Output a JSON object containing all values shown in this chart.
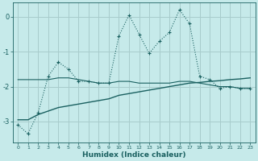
{
  "xlabel": "Humidex (Indice chaleur)",
  "background_color": "#c6eaea",
  "grid_color": "#a8cccc",
  "line_color": "#1a6060",
  "xlim": [
    -0.5,
    23.5
  ],
  "ylim": [
    -3.6,
    0.4
  ],
  "yticks": [
    0,
    -1,
    -2,
    -3
  ],
  "xticks": [
    0,
    1,
    2,
    3,
    4,
    5,
    6,
    7,
    8,
    9,
    10,
    11,
    12,
    13,
    14,
    15,
    16,
    17,
    18,
    19,
    20,
    21,
    22,
    23
  ],
  "series1_x": [
    0,
    1,
    2,
    3,
    4,
    5,
    6,
    7,
    8,
    9,
    10,
    11,
    12,
    13,
    14,
    15,
    16,
    17,
    18,
    19,
    20,
    21,
    22,
    23
  ],
  "series1_y": [
    -3.1,
    -3.35,
    -2.75,
    -1.7,
    -1.3,
    -1.5,
    -1.85,
    -1.85,
    -1.9,
    -1.9,
    -0.55,
    0.05,
    -0.5,
    -1.05,
    -0.7,
    -0.45,
    0.2,
    -0.2,
    -1.7,
    -1.8,
    -2.05,
    -2.0,
    -2.05,
    -2.05
  ],
  "series2_x": [
    0,
    1,
    2,
    3,
    4,
    5,
    6,
    7,
    8,
    9,
    10,
    11,
    12,
    13,
    14,
    15,
    16,
    17,
    18,
    19,
    20,
    21,
    22,
    23
  ],
  "series2_y": [
    -1.8,
    -1.8,
    -1.8,
    -1.8,
    -1.75,
    -1.75,
    -1.8,
    -1.85,
    -1.9,
    -1.9,
    -1.85,
    -1.85,
    -1.9,
    -1.9,
    -1.9,
    -1.9,
    -1.85,
    -1.85,
    -1.9,
    -1.95,
    -2.0,
    -2.0,
    -2.05,
    -2.05
  ],
  "series3_x": [
    0,
    1,
    2,
    3,
    4,
    5,
    6,
    7,
    8,
    9,
    10,
    11,
    12,
    13,
    14,
    15,
    16,
    17,
    18,
    19,
    20,
    21,
    22,
    23
  ],
  "series3_y": [
    -2.95,
    -2.95,
    -2.8,
    -2.7,
    -2.6,
    -2.55,
    -2.5,
    -2.45,
    -2.4,
    -2.35,
    -2.25,
    -2.2,
    -2.15,
    -2.1,
    -2.05,
    -2.0,
    -1.95,
    -1.9,
    -1.88,
    -1.85,
    -1.83,
    -1.8,
    -1.78,
    -1.75
  ],
  "markersize": 2.5,
  "linewidth1": 0.8,
  "linewidth2": 0.8,
  "linewidth3": 1.0
}
